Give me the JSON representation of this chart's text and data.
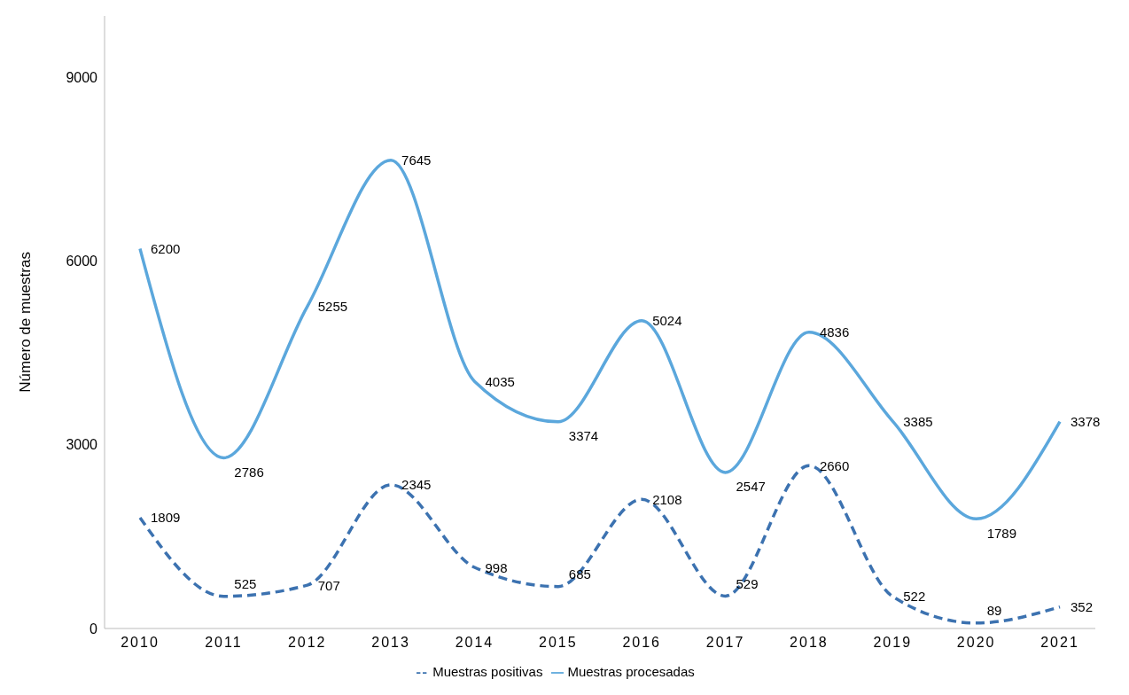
{
  "chart_data": {
    "type": "line",
    "ylabel": "Número de muestras",
    "categories": [
      "2010",
      "2011",
      "2012",
      "2013",
      "2014",
      "2015",
      "2016",
      "2017",
      "2018",
      "2019",
      "2020",
      "2021"
    ],
    "series": [
      {
        "name": "Muestras positivas",
        "color": "#3c72b0",
        "line_style": "dashed",
        "values": [
          1809,
          525,
          707,
          2345,
          998,
          685,
          2108,
          529,
          2660,
          522,
          89,
          352
        ]
      },
      {
        "name": "Muestras procesadas",
        "color": "#5ba7dc",
        "line_style": "solid",
        "values": [
          6200,
          2786,
          5255,
          7645,
          4035,
          3374,
          5024,
          2547,
          4836,
          3385,
          1789,
          3378
        ]
      }
    ],
    "ylim": [
      0,
      10000
    ],
    "yticks": [
      0,
      3000,
      6000,
      9000
    ],
    "grid": false,
    "legend": "bottom",
    "data_labels": true,
    "marker": "none"
  }
}
